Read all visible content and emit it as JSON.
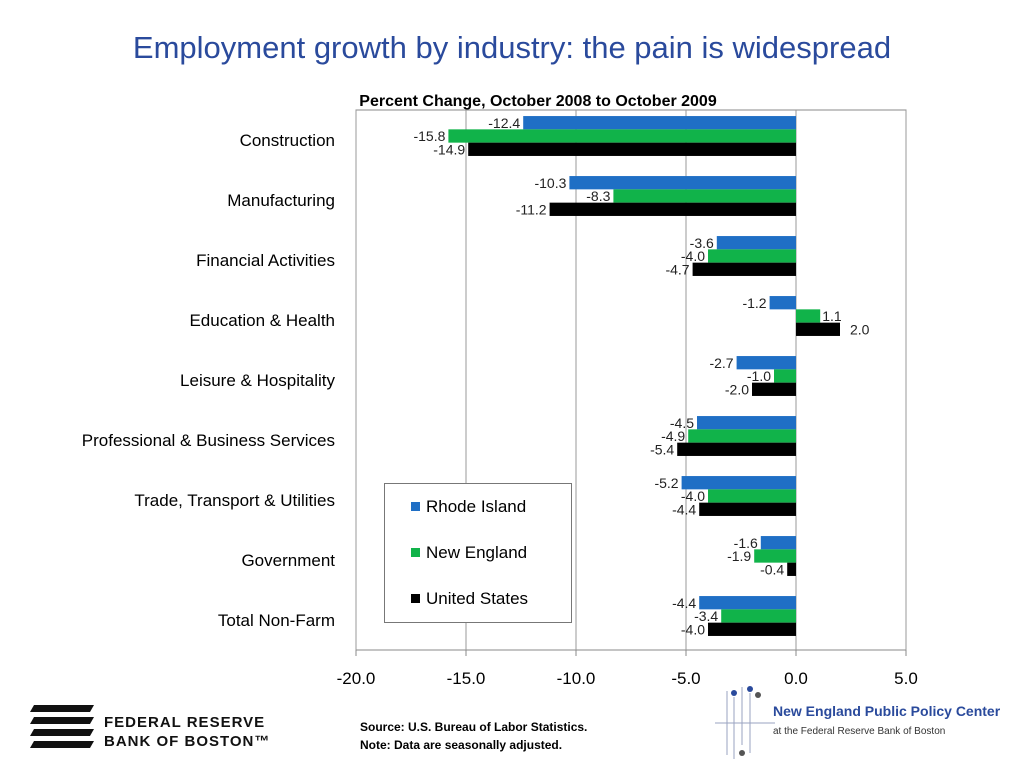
{
  "title": "Employment growth by industry: the pain is widespread",
  "chart_data": {
    "type": "bar",
    "orientation": "horizontal",
    "subtitle": "Percent Change, October 2008 to October 2009",
    "categories": [
      "Construction",
      "Manufacturing",
      "Financial Activities",
      "Education & Health",
      "Leisure & Hospitality",
      "Professional & Business Services",
      "Trade, Transport & Utilities",
      "Government",
      "Total Non-Farm"
    ],
    "series": [
      {
        "name": "Rhode Island",
        "color": "#1f6fc5",
        "values": [
          -12.4,
          -10.3,
          -3.6,
          -1.2,
          -2.7,
          -4.5,
          -5.2,
          -1.6,
          -4.4
        ],
        "labels": [
          "-12.4",
          "-10.3",
          "-3.6",
          "-1.2",
          "-2.7",
          "-4.5",
          "-5.2",
          "-1.6",
          "-4.4"
        ]
      },
      {
        "name": "New England",
        "color": "#11b34a",
        "values": [
          -15.8,
          -8.3,
          -4.0,
          1.1,
          -1.0,
          -4.9,
          -4.0,
          -1.9,
          -3.4
        ],
        "labels": [
          "-15.8",
          "-8.3",
          "-4.0",
          "1.1",
          "-1.0",
          "-4.9",
          "-4.0",
          "-1.9",
          "-3.4"
        ]
      },
      {
        "name": "United States",
        "color": "#000000",
        "values": [
          -14.9,
          -11.2,
          -4.7,
          2.0,
          -2.0,
          -5.4,
          -4.4,
          -0.4,
          -4.0
        ],
        "labels": [
          "-14.9",
          "-11.2",
          "-4.7",
          "2.0",
          "-2.0",
          "-5.4",
          "-4.4",
          "-0.4",
          "-4.0"
        ]
      }
    ],
    "xlim": [
      -20,
      5
    ],
    "xticks": [
      "-20.0",
      "-15.0",
      "-10.0",
      "-5.0",
      "0.0",
      "5.0"
    ],
    "grid": "vertical",
    "legend_position": "bottom-left"
  },
  "footer": {
    "frb_line1": "FEDERAL RESERVE",
    "frb_line2": "BANK OF BOSTON™",
    "source_line1": "Source: U.S. Bureau of Labor Statistics.",
    "source_line2": "Note: Data are seasonally adjusted.",
    "neppc_title": "New England Public Policy Center",
    "neppc_sub": "at the Federal Reserve Bank of Boston"
  }
}
